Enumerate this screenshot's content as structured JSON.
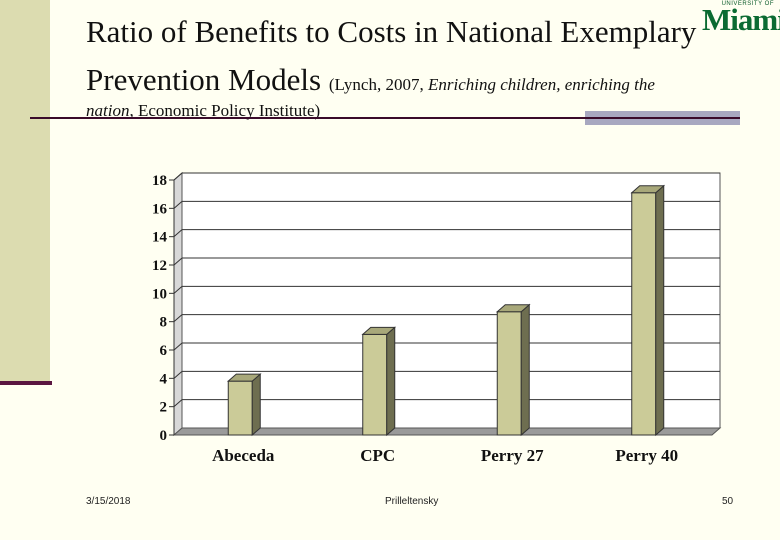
{
  "slide": {
    "title_line1": "Ratio of Benefits to Costs in National Exemplary",
    "title_line2": "Prevention Models",
    "citation_part1": "(Lynch, 2007, ",
    "citation_italic": "Enriching children, enriching the nation",
    "citation_part2": ", Economic Policy Institute)"
  },
  "logo": {
    "top_text": "UNIVERSITY OF",
    "main_text": "Miami"
  },
  "footer": {
    "date": "3/15/2018",
    "author": "Prilleltensky",
    "page": "50"
  },
  "colors": {
    "background": "#fffff2",
    "sidebar": "#dcdcb0",
    "accent_line": "#5a1540",
    "bar_front": "#cbcb98",
    "bar_top": "#a8a87a",
    "bar_side": "#6e6e50",
    "logo_green": "#0b6b32"
  },
  "chart_data": {
    "type": "bar",
    "three_d": true,
    "categories": [
      "Abeceda",
      "CPC",
      "Perry 27",
      "Perry 40"
    ],
    "values": [
      3.8,
      7.1,
      8.7,
      17.1
    ],
    "ylim": [
      0,
      18
    ],
    "yticks": [
      0,
      2,
      4,
      6,
      8,
      10,
      12,
      14,
      16,
      18
    ],
    "grid": true,
    "legend": "none"
  }
}
